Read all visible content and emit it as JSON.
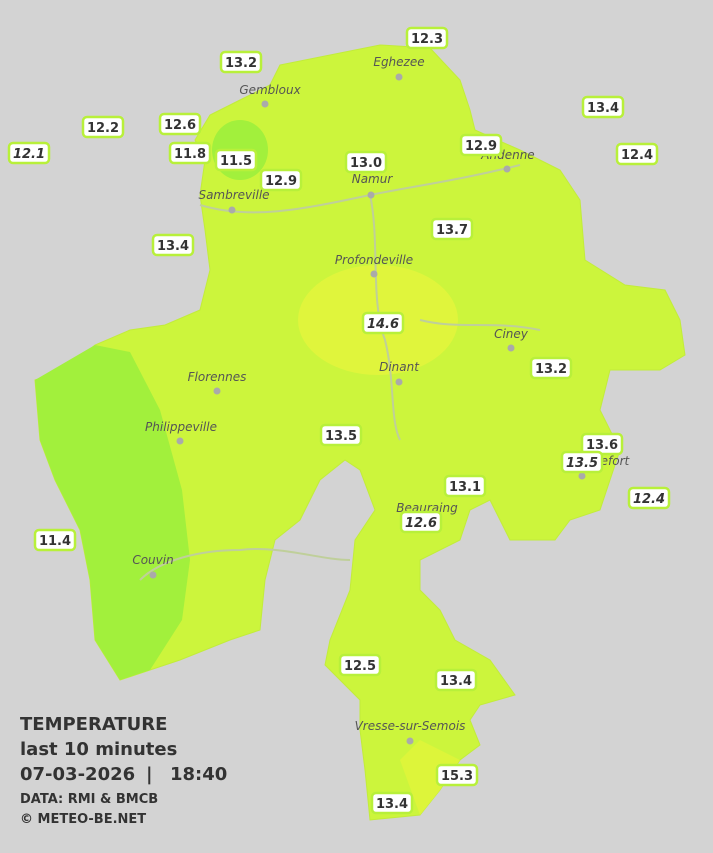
{
  "stations": [
    "12.3",
    "13.2",
    "13.4",
    "12.2",
    "12.6",
    "12.1",
    "11.8",
    "11.5",
    "12.9",
    "13.0",
    "12.4",
    "12.9",
    "13.4",
    "13.7",
    "14.6",
    "13.2",
    "13.5",
    "13.6",
    "13.5",
    "13.1",
    "12.4",
    "12.6",
    "11.4",
    "12.5",
    "13.4",
    "15.3",
    "13.4"
  ],
  "cities": [
    "Eghezee",
    "Gembloux",
    "Andenne",
    "Namur",
    "Sambreville",
    "Profondeville",
    "Ciney",
    "Dinant",
    "Florennes",
    "Philippeville",
    "Rochefort",
    "Beauraing",
    "Couvin",
    "Vresse-sur-Semois"
  ],
  "legend": {
    "title": "TEMPERATURE",
    "subtitle": "last 10 minutes",
    "date": "07-03-2026",
    "separator": "|",
    "time": "18:40",
    "source": "DATA: RMI & BMCB",
    "copyright": "© METEO-BE.NET"
  }
}
